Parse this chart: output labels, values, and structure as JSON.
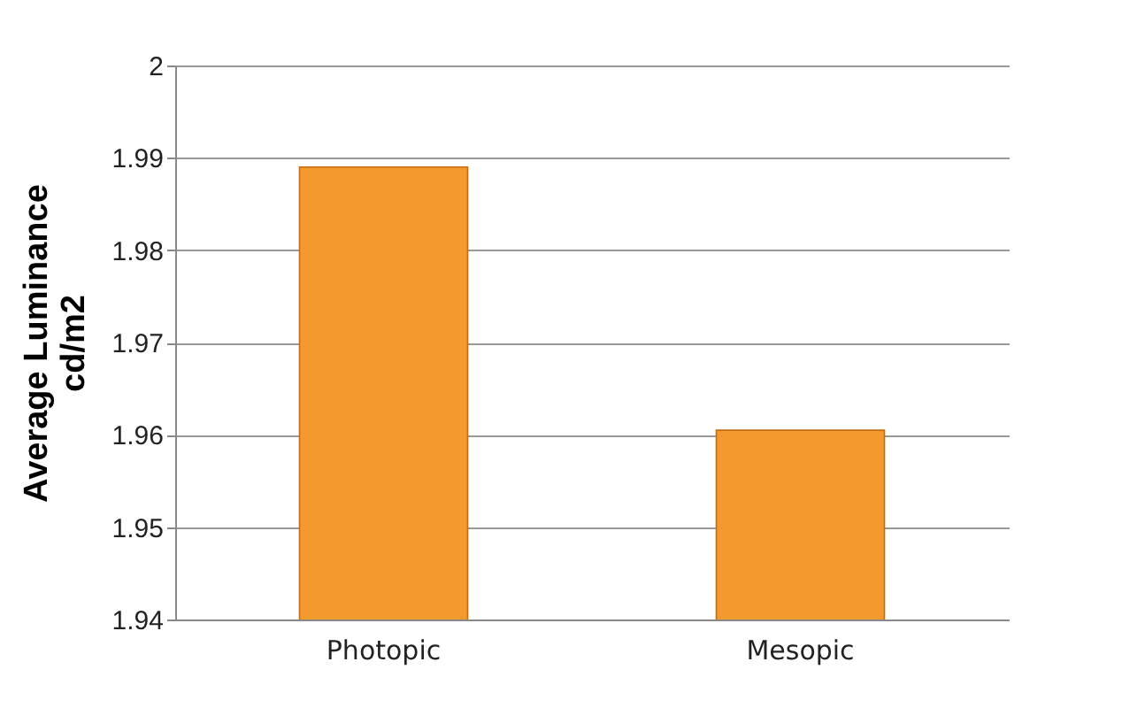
{
  "chart_data": {
    "type": "bar",
    "ylabel": "Average Luminance\ncd/m2",
    "categories": [
      "Photopic",
      "Mesopic"
    ],
    "values": [
      1.989,
      1.9605
    ],
    "color": "#f29a2e",
    "ylim": [
      1.94,
      2
    ],
    "yticks": [
      1.94,
      1.95,
      1.96,
      1.97,
      1.98,
      1.99,
      2
    ],
    "grid": "y"
  }
}
